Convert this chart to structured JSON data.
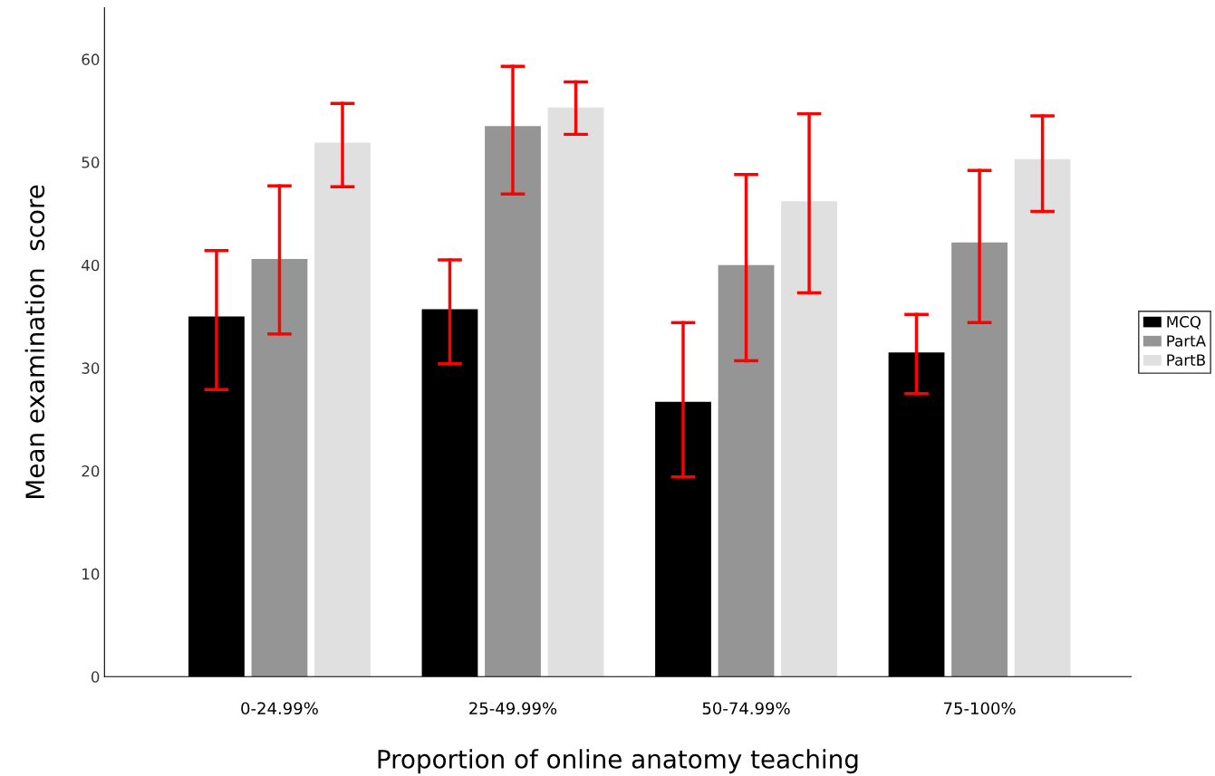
{
  "chart_data": {
    "type": "bar",
    "xlabel": "Proportion of online anatomy teaching",
    "ylabel": "Mean examination  score",
    "categories": [
      "0-24.99%",
      "25-49.99%",
      "50-74.99%",
      "75-100%"
    ],
    "series": [
      {
        "name": "MCQ",
        "color": "#000000",
        "values": [
          35.0,
          35.7,
          26.7,
          31.5
        ],
        "errors": [
          [
            27.9,
            41.4
          ],
          [
            30.4,
            40.5
          ],
          [
            19.4,
            34.4
          ],
          [
            27.5,
            35.2
          ]
        ]
      },
      {
        "name": "PartA",
        "color": "#959595",
        "values": [
          40.6,
          53.5,
          40.0,
          42.2
        ],
        "errors": [
          [
            33.3,
            47.7
          ],
          [
            46.9,
            59.3
          ],
          [
            30.7,
            48.8
          ],
          [
            34.4,
            49.2
          ]
        ]
      },
      {
        "name": "PartB",
        "color": "#e0e0e0",
        "values": [
          51.9,
          55.3,
          46.2,
          50.3
        ],
        "errors": [
          [
            47.6,
            55.7
          ],
          [
            52.7,
            57.8
          ],
          [
            37.3,
            54.7
          ],
          [
            45.2,
            54.5
          ]
        ]
      }
    ],
    "ylim": [
      0,
      65
    ],
    "yticks": [
      0,
      10,
      20,
      30,
      40,
      50,
      60
    ],
    "grid": false,
    "legend": "right"
  }
}
